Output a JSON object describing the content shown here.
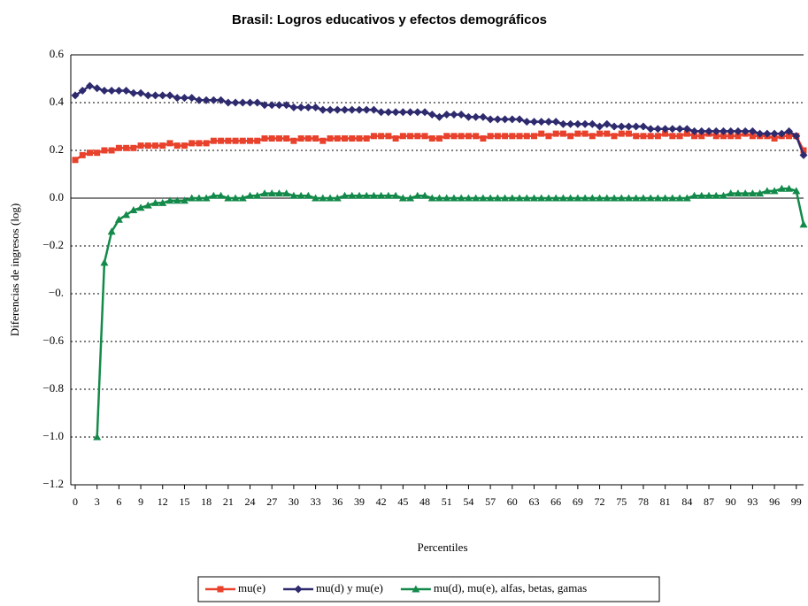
{
  "chart_data": {
    "type": "line",
    "title": "Brasil: Logros educativos y efectos demográficos",
    "x_label": "Percentiles",
    "y_label": "Diferencias de ingresos (log)",
    "x": [
      0,
      1,
      2,
      3,
      4,
      5,
      6,
      7,
      8,
      9,
      10,
      11,
      12,
      13,
      14,
      15,
      16,
      17,
      18,
      19,
      20,
      21,
      22,
      23,
      24,
      25,
      26,
      27,
      28,
      29,
      30,
      31,
      32,
      33,
      34,
      35,
      36,
      37,
      38,
      39,
      40,
      41,
      42,
      43,
      44,
      45,
      46,
      47,
      48,
      49,
      50,
      51,
      52,
      53,
      54,
      55,
      56,
      57,
      58,
      59,
      60,
      61,
      62,
      63,
      64,
      65,
      66,
      67,
      68,
      69,
      70,
      71,
      72,
      73,
      74,
      75,
      76,
      77,
      78,
      79,
      80,
      81,
      82,
      83,
      84,
      85,
      86,
      87,
      88,
      89,
      90,
      91,
      92,
      93,
      94,
      95,
      96,
      97,
      98,
      99,
      100
    ],
    "xlim": [
      0,
      100
    ],
    "xticks": [
      0,
      3,
      6,
      9,
      12,
      15,
      18,
      21,
      24,
      27,
      30,
      33,
      36,
      39,
      42,
      45,
      48,
      51,
      54,
      57,
      60,
      63,
      66,
      69,
      72,
      75,
      78,
      81,
      84,
      87,
      90,
      93,
      96,
      99
    ],
    "ylim": [
      -1.2,
      0.6
    ],
    "yticks": [
      {
        "value": -1.2,
        "label": "−1.2"
      },
      {
        "value": -1.0,
        "label": "−1.0"
      },
      {
        "value": -0.8,
        "label": "−0.8"
      },
      {
        "value": -0.6,
        "label": "−0.6"
      },
      {
        "value": -0.4,
        "label": "−0."
      },
      {
        "value": -0.2,
        "label": "−0.2"
      },
      {
        "value": 0,
        "label": "0.0"
      },
      0.2,
      0.4,
      0.6
    ],
    "grid": true,
    "legend": "bottom",
    "series": [
      {
        "name": "mu(e)",
        "color": "#e8412c",
        "marker": "square",
        "values": [
          0.16,
          0.18,
          0.19,
          0.19,
          0.2,
          0.2,
          0.21,
          0.21,
          0.21,
          0.22,
          0.22,
          0.22,
          0.22,
          0.23,
          0.22,
          0.22,
          0.23,
          0.23,
          0.23,
          0.24,
          0.24,
          0.24,
          0.24,
          0.24,
          0.24,
          0.24,
          0.25,
          0.25,
          0.25,
          0.25,
          0.24,
          0.25,
          0.25,
          0.25,
          0.24,
          0.25,
          0.25,
          0.25,
          0.25,
          0.25,
          0.25,
          0.26,
          0.26,
          0.26,
          0.25,
          0.26,
          0.26,
          0.26,
          0.26,
          0.25,
          0.25,
          0.26,
          0.26,
          0.26,
          0.26,
          0.26,
          0.25,
          0.26,
          0.26,
          0.26,
          0.26,
          0.26,
          0.26,
          0.26,
          0.27,
          0.26,
          0.27,
          0.27,
          0.26,
          0.27,
          0.27,
          0.26,
          0.27,
          0.27,
          0.26,
          0.27,
          0.27,
          0.26,
          0.26,
          0.26,
          0.26,
          0.27,
          0.26,
          0.26,
          0.27,
          0.26,
          0.26,
          0.27,
          0.26,
          0.26,
          0.26,
          0.26,
          0.27,
          0.26,
          0.26,
          0.26,
          0.25,
          0.26,
          0.26,
          0.26,
          0.2
        ]
      },
      {
        "name": "mu(d) y mu(e)",
        "color": "#2e2a6e",
        "marker": "diamond",
        "values": [
          0.43,
          0.45,
          0.47,
          0.46,
          0.45,
          0.45,
          0.45,
          0.45,
          0.44,
          0.44,
          0.43,
          0.43,
          0.43,
          0.43,
          0.42,
          0.42,
          0.42,
          0.41,
          0.41,
          0.41,
          0.41,
          0.4,
          0.4,
          0.4,
          0.4,
          0.4,
          0.39,
          0.39,
          0.39,
          0.39,
          0.38,
          0.38,
          0.38,
          0.38,
          0.37,
          0.37,
          0.37,
          0.37,
          0.37,
          0.37,
          0.37,
          0.37,
          0.36,
          0.36,
          0.36,
          0.36,
          0.36,
          0.36,
          0.36,
          0.35,
          0.34,
          0.35,
          0.35,
          0.35,
          0.34,
          0.34,
          0.34,
          0.33,
          0.33,
          0.33,
          0.33,
          0.33,
          0.32,
          0.32,
          0.32,
          0.32,
          0.32,
          0.31,
          0.31,
          0.31,
          0.31,
          0.31,
          0.3,
          0.31,
          0.3,
          0.3,
          0.3,
          0.3,
          0.3,
          0.29,
          0.29,
          0.29,
          0.29,
          0.29,
          0.29,
          0.28,
          0.28,
          0.28,
          0.28,
          0.28,
          0.28,
          0.28,
          0.28,
          0.28,
          0.27,
          0.27,
          0.27,
          0.27,
          0.28,
          0.26,
          0.18
        ]
      },
      {
        "name": "mu(d), mu(e), alfas, betas, gamas",
        "color": "#138a4a",
        "marker": "triangle",
        "values": [
          null,
          null,
          null,
          -1.0,
          -0.27,
          -0.14,
          -0.09,
          -0.07,
          -0.05,
          -0.04,
          -0.03,
          -0.02,
          -0.02,
          -0.01,
          -0.01,
          -0.01,
          0.0,
          0.0,
          0.0,
          0.01,
          0.01,
          0.0,
          0.0,
          0.0,
          0.01,
          0.01,
          0.02,
          0.02,
          0.02,
          0.02,
          0.01,
          0.01,
          0.01,
          0.0,
          0.0,
          0.0,
          0.0,
          0.01,
          0.01,
          0.01,
          0.01,
          0.01,
          0.01,
          0.01,
          0.01,
          0.0,
          0.0,
          0.01,
          0.01,
          0.0,
          0.0,
          0.0,
          0.0,
          0.0,
          0.0,
          0.0,
          0.0,
          0.0,
          0.0,
          0.0,
          0.0,
          0.0,
          0.0,
          0.0,
          0.0,
          0.0,
          0.0,
          0.0,
          0.0,
          0.0,
          0.0,
          0.0,
          0.0,
          0.0,
          0.0,
          0.0,
          0.0,
          0.0,
          0.0,
          0.0,
          0.0,
          0.0,
          0.0,
          0.0,
          0.0,
          0.01,
          0.01,
          0.01,
          0.01,
          0.01,
          0.02,
          0.02,
          0.02,
          0.02,
          0.02,
          0.03,
          0.03,
          0.04,
          0.04,
          0.03,
          -0.11
        ]
      }
    ]
  }
}
